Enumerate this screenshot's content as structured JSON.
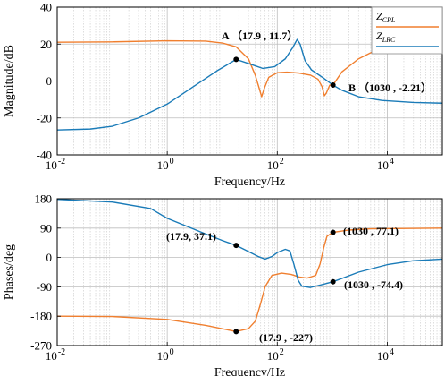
{
  "chart_data": [
    {
      "type": "line",
      "x_scale": "log",
      "xlim": [
        0.01,
        100000
      ],
      "ylim": [
        -40,
        40
      ],
      "yticks": [
        -40,
        -20,
        0,
        20,
        40
      ],
      "xticks": [
        {
          "value": 0.01,
          "base": "10",
          "exp": "-2"
        },
        {
          "value": 1,
          "base": "10",
          "exp": "0"
        },
        {
          "value": 100,
          "base": "10",
          "exp": "2"
        },
        {
          "value": 10000,
          "base": "10",
          "exp": "4"
        }
      ],
      "xlabel": "Frequency/Hz",
      "ylabel": "Magnitude/dB",
      "grid": true,
      "legend_position": "top-right",
      "legend": [
        {
          "base": "Z",
          "sub": "CPL",
          "color": "#F07F2F"
        },
        {
          "base": "Z",
          "sub": "LRC",
          "color": "#1A7BB8"
        }
      ],
      "series": [
        {
          "color": "#F07F2F",
          "points": [
            [
              0.01,
              21
            ],
            [
              0.1,
              21.2
            ],
            [
              1,
              21.8
            ],
            [
              5,
              21.6
            ],
            [
              10,
              20.6
            ],
            [
              17.9,
              18.5
            ],
            [
              30,
              12
            ],
            [
              40,
              3
            ],
            [
              47,
              -4
            ],
            [
              52,
              -8.5
            ],
            [
              58,
              -4
            ],
            [
              70,
              2
            ],
            [
              100,
              4.5
            ],
            [
              150,
              4.8
            ],
            [
              250,
              4.3
            ],
            [
              400,
              3.2
            ],
            [
              550,
              1
            ],
            [
              650,
              -3
            ],
            [
              720,
              -8
            ],
            [
              780,
              -6.5
            ],
            [
              900,
              -2.21
            ],
            [
              1030,
              -2.21
            ],
            [
              1500,
              5
            ],
            [
              3000,
              12
            ],
            [
              6000,
              16.5
            ],
            [
              12000,
              19
            ],
            [
              30000,
              20.2
            ],
            [
              100000,
              20.8
            ]
          ]
        },
        {
          "color": "#1A7BB8",
          "points": [
            [
              0.01,
              -26.5
            ],
            [
              0.04,
              -26
            ],
            [
              0.1,
              -24.5
            ],
            [
              0.3,
              -20
            ],
            [
              1,
              -12.5
            ],
            [
              3,
              -3
            ],
            [
              8,
              5.5
            ],
            [
              17.9,
              11.7
            ],
            [
              30,
              9.5
            ],
            [
              55,
              6.8
            ],
            [
              90,
              7.8
            ],
            [
              140,
              12
            ],
            [
              190,
              18
            ],
            [
              230,
              22.5
            ],
            [
              260,
              20
            ],
            [
              320,
              11
            ],
            [
              420,
              6
            ],
            [
              700,
              1.5
            ],
            [
              1030,
              -2.21
            ],
            [
              1500,
              -5
            ],
            [
              3000,
              -8.5
            ],
            [
              8000,
              -10.5
            ],
            [
              30000,
              -11.6
            ],
            [
              100000,
              -12
            ]
          ]
        }
      ],
      "annotations": [
        {
          "text": "A （17.9 , 11.7）",
          "x": 17.9,
          "y": 11.7
        },
        {
          "text": "B （1030 , -2.21）",
          "x": 1030,
          "y": -2.21
        }
      ]
    },
    {
      "type": "line",
      "x_scale": "log",
      "xlim": [
        0.01,
        100000
      ],
      "ylim": [
        -270,
        180
      ],
      "yticks": [
        -270,
        -180,
        -90,
        0,
        90,
        180
      ],
      "xticks": [
        {
          "value": 0.01,
          "base": "10",
          "exp": "-2"
        },
        {
          "value": 1,
          "base": "10",
          "exp": "0"
        },
        {
          "value": 100,
          "base": "10",
          "exp": "2"
        },
        {
          "value": 10000,
          "base": "10",
          "exp": "4"
        }
      ],
      "xlabel": "Frequency/Hz",
      "ylabel": "Phases/deg",
      "grid": true,
      "series": [
        {
          "color": "#F07F2F",
          "points": [
            [
              0.01,
              -180
            ],
            [
              0.1,
              -181
            ],
            [
              1,
              -190
            ],
            [
              5,
              -208
            ],
            [
              17.9,
              -227
            ],
            [
              30,
              -218
            ],
            [
              40,
              -195
            ],
            [
              50,
              -140
            ],
            [
              60,
              -90
            ],
            [
              80,
              -55
            ],
            [
              120,
              -48
            ],
            [
              180,
              -52
            ],
            [
              250,
              -60
            ],
            [
              350,
              -63
            ],
            [
              500,
              -55
            ],
            [
              600,
              -20
            ],
            [
              700,
              30
            ],
            [
              800,
              65
            ],
            [
              1030,
              77.1
            ],
            [
              2000,
              84
            ],
            [
              5000,
              88
            ],
            [
              100000,
              90
            ]
          ]
        },
        {
          "color": "#1A7BB8",
          "points": [
            [
              0.01,
              178
            ],
            [
              0.1,
              170
            ],
            [
              0.5,
              150
            ],
            [
              1,
              120
            ],
            [
              5,
              72
            ],
            [
              10,
              52
            ],
            [
              17.9,
              37.1
            ],
            [
              30,
              18
            ],
            [
              45,
              3
            ],
            [
              60,
              -5
            ],
            [
              80,
              3
            ],
            [
              100,
              15
            ],
            [
              140,
              25
            ],
            [
              170,
              20
            ],
            [
              200,
              -20
            ],
            [
              240,
              -70
            ],
            [
              280,
              -88
            ],
            [
              400,
              -92
            ],
            [
              700,
              -82
            ],
            [
              1030,
              -74.4
            ],
            [
              3000,
              -45
            ],
            [
              10000,
              -22
            ],
            [
              30000,
              -10
            ],
            [
              100000,
              -5
            ]
          ]
        }
      ],
      "annotations": [
        {
          "text": "(17.9, 37.1)",
          "x": 17.9,
          "y": 37.1
        },
        {
          "text": "(1030 , 77.1)",
          "x": 1030,
          "y": 77.1
        },
        {
          "text": "(1030 , -74.4)",
          "x": 1030,
          "y": -74.4
        },
        {
          "text": "(17.9 , -227)",
          "x": 17.9,
          "y": -227
        }
      ]
    }
  ]
}
